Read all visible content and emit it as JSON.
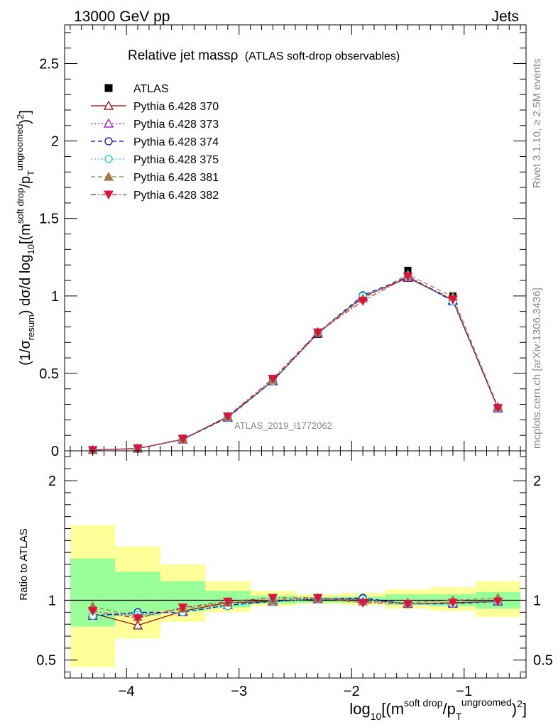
{
  "header": {
    "left": "13000 GeV pp",
    "right": "Jets"
  },
  "title": {
    "main": "Relative jet massρ",
    "sub": "(ATLAS soft-drop observables)"
  },
  "side_text": {
    "rivet": "Rivet 3.1.10, ≥ 2.5M events",
    "mcplots": "mcplots.cern.ch [arXiv:1306.3436]"
  },
  "watermark": "ATLAS_2019_I1772062",
  "main_ylabel": "(1/σresum) dσ/d log10[(msoft drop/pTungroomed)2]",
  "ratio_ylabel": "Ratio to ATLAS",
  "xlabel": "log10[(msoft drop/pTungroomed)2]",
  "colors": {
    "green_band": "#99ff99",
    "yellow_band": "#ffff99"
  },
  "chart_data": [
    {
      "type": "line",
      "panel": "main",
      "x": [
        -4.3,
        -3.9,
        -3.5,
        -3.1,
        -2.7,
        -2.3,
        -1.9,
        -1.5,
        -1.1,
        -0.7
      ],
      "ylim": [
        0,
        2.75
      ],
      "xlim": [
        -4.55,
        -0.45
      ],
      "yticks": [
        0,
        0.5,
        1,
        1.5,
        2,
        2.5
      ],
      "xticks": [
        -4,
        -3,
        -2,
        -1
      ],
      "legend_position": "top-left",
      "series": [
        {
          "name": "ATLAS",
          "color": "#000000",
          "marker": "square-filled",
          "dash": "none",
          "values": [
            0.006,
            0.018,
            0.081,
            0.224,
            0.456,
            0.752,
            0.989,
            1.165,
            1.0,
            0.278
          ]
        },
        {
          "name": "Pythia 6.428 370",
          "color": "#8b0000",
          "marker": "triangle-up-open",
          "dash": "solid",
          "values": [
            0.005,
            0.014,
            0.073,
            0.22,
            0.45,
            0.758,
            0.995,
            1.117,
            0.973,
            0.275
          ]
        },
        {
          "name": "Pythia 6.428 373",
          "color": "#9400d3",
          "marker": "triangle-up-open",
          "dash": "dot",
          "values": [
            0.005,
            0.016,
            0.073,
            0.213,
            0.449,
            0.761,
            1.0,
            1.125,
            0.965,
            0.274
          ]
        },
        {
          "name": "Pythia 6.428 374",
          "color": "#0000cd",
          "marker": "circle-open",
          "dash": "dash",
          "values": [
            0.005,
            0.016,
            0.073,
            0.214,
            0.451,
            0.763,
            1.004,
            1.124,
            0.968,
            0.275
          ]
        },
        {
          "name": "Pythia 6.428 375",
          "color": "#00ced1",
          "marker": "circle-open",
          "dash": "dot",
          "values": [
            0.005,
            0.015,
            0.072,
            0.212,
            0.449,
            0.76,
            1.0,
            1.124,
            0.963,
            0.274
          ]
        },
        {
          "name": "Pythia 6.428 381",
          "color": "#a0784a",
          "marker": "triangle-up-filled",
          "dash": "dash",
          "values": [
            0.006,
            0.016,
            0.076,
            0.22,
            0.458,
            0.767,
            0.983,
            1.138,
            0.995,
            0.284
          ]
        },
        {
          "name": "Pythia 6.428 382",
          "color": "#dc143c",
          "marker": "triangle-down-filled",
          "dash": "dashdot",
          "values": [
            0.005,
            0.015,
            0.076,
            0.222,
            0.466,
            0.765,
            0.968,
            1.125,
            0.976,
            0.276
          ]
        }
      ]
    },
    {
      "type": "line",
      "panel": "ratio",
      "x": [
        -4.3,
        -3.9,
        -3.5,
        -3.1,
        -2.7,
        -2.3,
        -1.9,
        -1.5,
        -1.1,
        -0.7
      ],
      "ylim": [
        0.35,
        2.25
      ],
      "xlim": [
        -4.55,
        -0.45
      ],
      "yticks": [
        0.5,
        1,
        2
      ],
      "bands": {
        "edges": [
          -4.5,
          -4.1,
          -3.7,
          -3.3,
          -2.9,
          -2.5,
          -2.1,
          -1.7,
          -1.3,
          -0.9,
          -0.5
        ],
        "green": [
          [
            0.78,
            1.35
          ],
          [
            0.87,
            1.24
          ],
          [
            0.91,
            1.16
          ],
          [
            0.94,
            1.08
          ],
          [
            0.97,
            1.04
          ],
          [
            0.98,
            1.03
          ],
          [
            0.98,
            1.03
          ],
          [
            0.96,
            1.05
          ],
          [
            0.95,
            1.05
          ],
          [
            0.93,
            1.07
          ]
        ],
        "yellow": [
          [
            0.44,
            1.63
          ],
          [
            0.68,
            1.45
          ],
          [
            0.82,
            1.3
          ],
          [
            0.9,
            1.16
          ],
          [
            0.95,
            1.08
          ],
          [
            0.97,
            1.05
          ],
          [
            0.96,
            1.06
          ],
          [
            0.93,
            1.09
          ],
          [
            0.91,
            1.11
          ],
          [
            0.86,
            1.16
          ]
        ]
      },
      "series": [
        {
          "name": "Pythia 6.428 370",
          "color": "#8b0000",
          "marker": "triangle-up-open",
          "dash": "solid",
          "values": [
            0.89,
            0.79,
            0.91,
            0.98,
            0.99,
            1.01,
            1.01,
            0.97,
            0.98,
            0.99
          ]
        },
        {
          "name": "Pythia 6.428 373",
          "color": "#9400d3",
          "marker": "triangle-up-open",
          "dash": "dot",
          "values": [
            0.87,
            0.89,
            0.9,
            0.96,
            0.99,
            1.01,
            1.01,
            0.97,
            0.97,
            0.99
          ]
        },
        {
          "name": "Pythia 6.428 374",
          "color": "#0000cd",
          "marker": "circle-open",
          "dash": "dash",
          "values": [
            0.87,
            0.9,
            0.9,
            0.96,
            0.99,
            1.01,
            1.02,
            0.97,
            0.97,
            0.99
          ]
        },
        {
          "name": "Pythia 6.428 375",
          "color": "#00ced1",
          "marker": "circle-open",
          "dash": "dot",
          "values": [
            0.87,
            0.88,
            0.9,
            0.95,
            0.99,
            1.01,
            1.01,
            0.97,
            0.97,
            0.99
          ]
        },
        {
          "name": "Pythia 6.428 381",
          "color": "#a0784a",
          "marker": "triangle-up-filled",
          "dash": "dash",
          "values": [
            0.95,
            0.86,
            0.93,
            0.98,
            1.0,
            1.02,
            0.99,
            0.98,
            1.0,
            1.02
          ]
        },
        {
          "name": "Pythia 6.428 382",
          "color": "#dc143c",
          "marker": "triangle-down-filled",
          "dash": "dashdot",
          "values": [
            0.91,
            0.85,
            0.94,
            0.99,
            1.02,
            1.02,
            0.98,
            0.97,
            0.98,
            0.99
          ]
        }
      ]
    }
  ]
}
